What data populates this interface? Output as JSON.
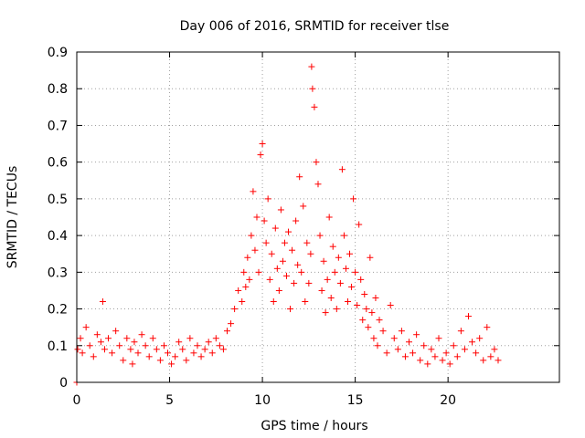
{
  "chart_data": {
    "type": "scatter",
    "title": "Day 006 of 2016, SRMTID for receiver tlse",
    "xlabel": "GPS time / hours",
    "ylabel": "SRMTID / TECUs",
    "xlim": [
      0,
      26
    ],
    "ylim": [
      0,
      0.9
    ],
    "xticks": [
      0,
      5,
      10,
      15,
      20
    ],
    "yticks": [
      0,
      0.1,
      0.2,
      0.3,
      0.4,
      0.5,
      0.6,
      0.7,
      0.8,
      0.9
    ],
    "xtick_labels": [
      "0",
      "5",
      "10",
      "15",
      "20"
    ],
    "ytick_labels": [
      "0",
      "0.1",
      "0.2",
      "0.3",
      "0.4",
      "0.5",
      "0.6",
      "0.7",
      "0.8",
      "0.9"
    ],
    "grid": true,
    "marker": "plus",
    "point_color": "#ff0000",
    "series": [
      {
        "name": "SRMTID",
        "x": [
          0.0,
          0.05,
          0.2,
          0.3,
          0.5,
          0.7,
          0.9,
          1.1,
          1.3,
          1.4,
          1.5,
          1.7,
          1.9,
          2.1,
          2.3,
          2.5,
          2.7,
          2.9,
          3.0,
          3.1,
          3.3,
          3.5,
          3.7,
          3.9,
          4.1,
          4.3,
          4.5,
          4.7,
          4.9,
          5.1,
          5.3,
          5.5,
          5.7,
          5.9,
          6.1,
          6.3,
          6.5,
          6.7,
          6.9,
          7.1,
          7.3,
          7.5,
          7.7,
          7.9,
          8.1,
          8.3,
          8.5,
          8.7,
          8.9,
          9.0,
          9.1,
          9.2,
          9.3,
          9.4,
          9.5,
          9.6,
          9.7,
          9.8,
          9.9,
          10.0,
          10.1,
          10.2,
          10.3,
          10.4,
          10.5,
          10.6,
          10.7,
          10.8,
          10.9,
          11.0,
          11.1,
          11.2,
          11.3,
          11.4,
          11.5,
          11.6,
          11.7,
          11.8,
          11.9,
          12.0,
          12.1,
          12.2,
          12.3,
          12.4,
          12.5,
          12.6,
          12.65,
          12.7,
          12.8,
          12.9,
          13.0,
          13.1,
          13.2,
          13.3,
          13.4,
          13.5,
          13.6,
          13.7,
          13.8,
          13.9,
          14.0,
          14.1,
          14.2,
          14.3,
          14.4,
          14.5,
          14.6,
          14.7,
          14.8,
          14.9,
          15.0,
          15.1,
          15.2,
          15.3,
          15.4,
          15.5,
          15.6,
          15.7,
          15.8,
          15.9,
          16.0,
          16.1,
          16.2,
          16.3,
          16.5,
          16.7,
          16.9,
          17.1,
          17.3,
          17.5,
          17.7,
          17.9,
          18.1,
          18.3,
          18.5,
          18.7,
          18.9,
          19.1,
          19.3,
          19.5,
          19.7,
          19.9,
          20.1,
          20.3,
          20.5,
          20.7,
          20.9,
          21.1,
          21.3,
          21.5,
          21.7,
          21.9,
          22.1,
          22.3,
          22.5,
          22.7
        ],
        "y": [
          0.0,
          0.09,
          0.12,
          0.08,
          0.15,
          0.1,
          0.07,
          0.13,
          0.11,
          0.22,
          0.09,
          0.12,
          0.08,
          0.14,
          0.1,
          0.06,
          0.12,
          0.09,
          0.05,
          0.11,
          0.08,
          0.13,
          0.1,
          0.07,
          0.12,
          0.09,
          0.06,
          0.1,
          0.08,
          0.05,
          0.07,
          0.11,
          0.09,
          0.06,
          0.12,
          0.08,
          0.1,
          0.07,
          0.09,
          0.11,
          0.08,
          0.12,
          0.1,
          0.09,
          0.14,
          0.16,
          0.2,
          0.25,
          0.22,
          0.3,
          0.26,
          0.34,
          0.28,
          0.4,
          0.52,
          0.36,
          0.45,
          0.3,
          0.62,
          0.65,
          0.44,
          0.38,
          0.5,
          0.28,
          0.35,
          0.22,
          0.42,
          0.31,
          0.25,
          0.47,
          0.33,
          0.38,
          0.29,
          0.41,
          0.2,
          0.36,
          0.27,
          0.44,
          0.32,
          0.56,
          0.3,
          0.48,
          0.22,
          0.38,
          0.27,
          0.35,
          0.86,
          0.8,
          0.75,
          0.6,
          0.54,
          0.4,
          0.25,
          0.33,
          0.19,
          0.28,
          0.45,
          0.23,
          0.37,
          0.3,
          0.2,
          0.34,
          0.27,
          0.58,
          0.4,
          0.31,
          0.22,
          0.35,
          0.26,
          0.5,
          0.3,
          0.21,
          0.43,
          0.28,
          0.17,
          0.24,
          0.2,
          0.15,
          0.34,
          0.19,
          0.12,
          0.23,
          0.1,
          0.17,
          0.14,
          0.08,
          0.21,
          0.12,
          0.09,
          0.14,
          0.07,
          0.11,
          0.08,
          0.13,
          0.06,
          0.1,
          0.05,
          0.09,
          0.07,
          0.12,
          0.06,
          0.08,
          0.05,
          0.1,
          0.07,
          0.14,
          0.09,
          0.18,
          0.11,
          0.08,
          0.12,
          0.06,
          0.15,
          0.07,
          0.09,
          0.06
        ]
      }
    ]
  }
}
